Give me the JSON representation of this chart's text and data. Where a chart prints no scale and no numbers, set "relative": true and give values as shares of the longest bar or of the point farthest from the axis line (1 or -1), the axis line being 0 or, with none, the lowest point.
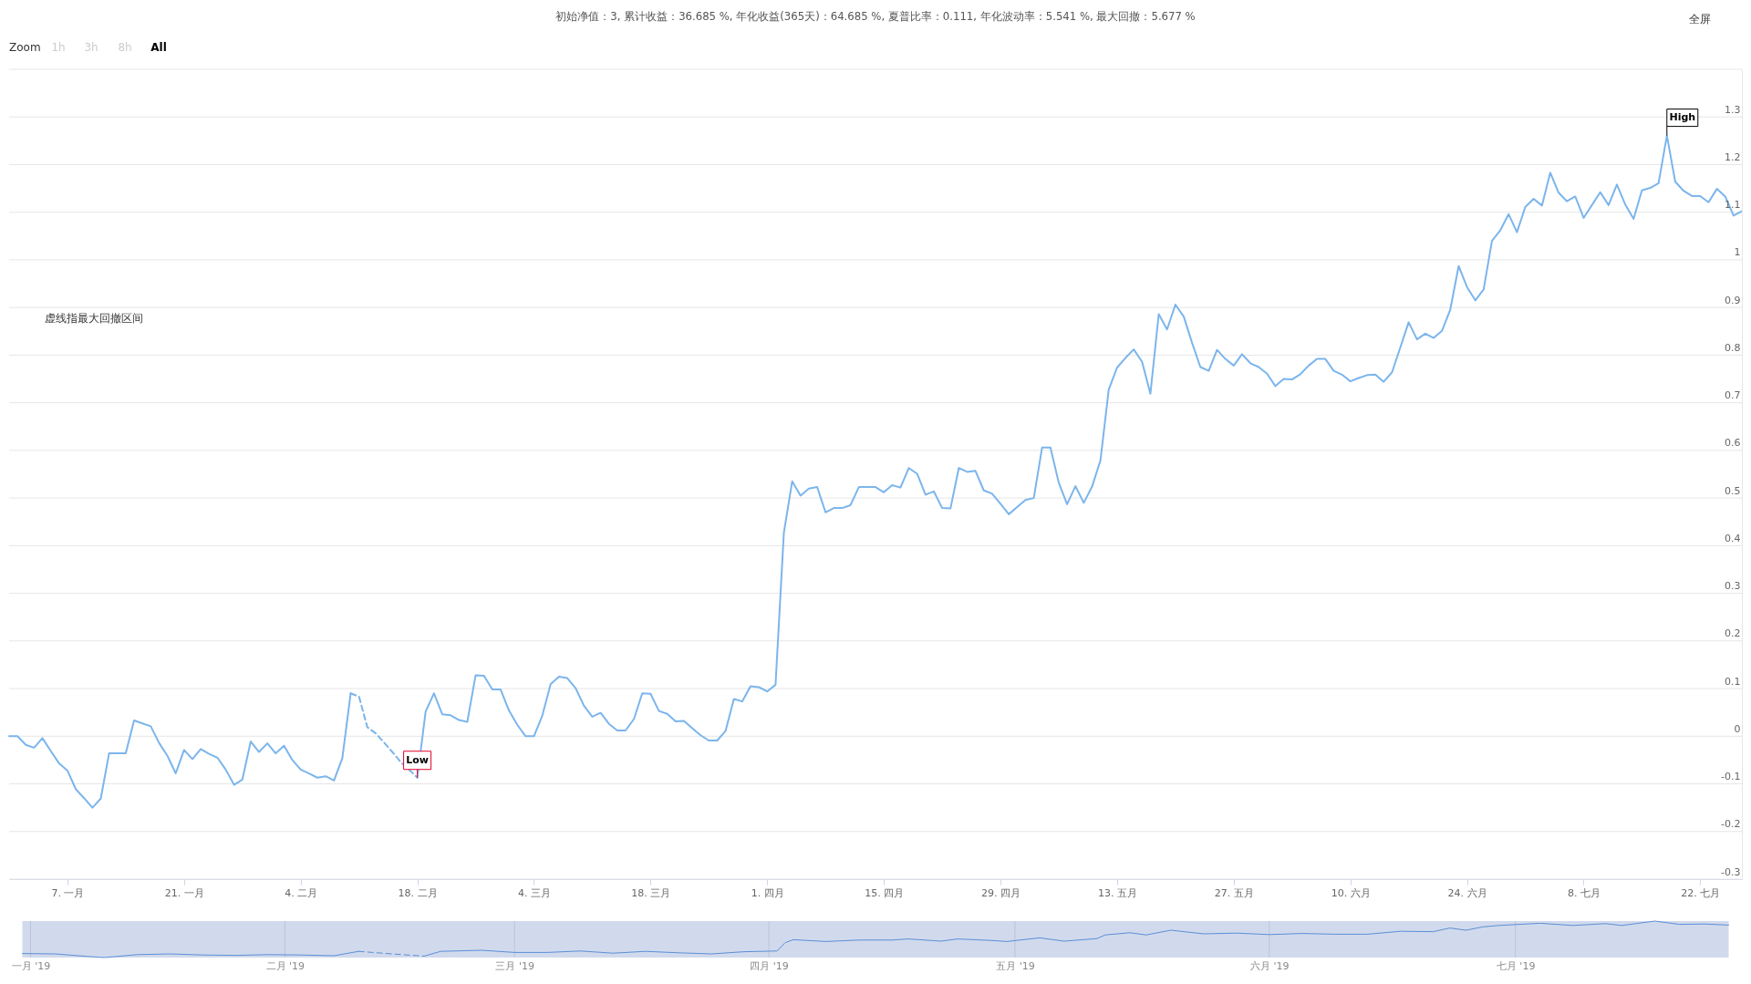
{
  "chart_data": [
    {
      "type": "line",
      "title": "初始净值：3, 累计收益：36.685 %, 年化收益(365天)：64.685 %, 夏普比率：0.111, 年化波动率：5.541 %, 最大回撤：5.677 %",
      "annotations": [
        "虚线指最大回撤区间",
        {
          "text": "High",
          "x": "2019-07-18",
          "y": 1.261
        },
        {
          "text": "Low",
          "x": "2019-02-18",
          "y": -0.087
        },
        "Zoom",
        "1h",
        "3h",
        "8h",
        "All",
        "全屏"
      ],
      "xlim": [
        "2018-12-31",
        "2019-07-27"
      ],
      "xticks": [
        {
          "value": "2019-01-07",
          "label": "7. 一月"
        },
        {
          "value": "2019-01-21",
          "label": "21. 一月"
        },
        {
          "value": "2019-02-04",
          "label": "4. 二月"
        },
        {
          "value": "2019-02-18",
          "label": "18. 二月"
        },
        {
          "value": "2019-03-04",
          "label": "4. 三月"
        },
        {
          "value": "2019-03-18",
          "label": "18. 三月"
        },
        {
          "value": "2019-04-01",
          "label": "1. 四月"
        },
        {
          "value": "2019-04-15",
          "label": "15. 四月"
        },
        {
          "value": "2019-04-29",
          "label": "29. 四月"
        },
        {
          "value": "2019-05-13",
          "label": "13. 五月"
        },
        {
          "value": "2019-05-27",
          "label": "27. 五月"
        },
        {
          "value": "2019-06-10",
          "label": "10. 六月"
        },
        {
          "value": "2019-06-24",
          "label": "24. 六月"
        },
        {
          "value": "2019-07-08",
          "label": "8. 七月"
        },
        {
          "value": "2019-07-22",
          "label": "22. 七月"
        }
      ],
      "ylim": [
        -0.3,
        1.4
      ],
      "yticks": [
        -0.3,
        -0.2,
        -0.1,
        0,
        0.1,
        0.2,
        0.3,
        0.4,
        0.5,
        0.6,
        0.7,
        0.8,
        0.9,
        1,
        1.1,
        1.2,
        1.3,
        {
          "value": 1.4,
          "label": null
        }
      ],
      "grid": "y",
      "line_style": "solid",
      "series": [
        {
          "color": "#7cb5ec",
          "x": [
            "2018-12-31",
            "2019-01-01",
            "2019-01-02",
            "2019-01-03",
            "2019-01-04",
            "2019-01-05",
            "2019-01-06",
            "2019-01-07",
            "2019-01-08",
            "2019-01-09",
            "2019-01-10",
            "2019-01-11",
            "2019-01-12",
            "2019-01-13",
            "2019-01-14",
            "2019-01-15",
            "2019-01-16",
            "2019-01-17",
            "2019-01-18",
            "2019-01-19",
            "2019-01-20",
            "2019-01-21",
            "2019-01-22",
            "2019-01-23",
            "2019-01-24",
            "2019-01-25",
            "2019-01-26",
            "2019-01-27",
            "2019-01-28",
            "2019-01-29",
            "2019-01-30",
            "2019-01-31",
            "2019-02-01",
            "2019-02-02",
            "2019-02-03",
            "2019-02-04",
            "2019-02-05",
            "2019-02-06",
            "2019-02-07",
            "2019-02-08",
            "2019-02-09",
            "2019-02-10",
            "2019-02-11",
            "2019-02-12",
            "2019-02-13",
            "2019-02-14",
            "2019-02-15",
            "2019-02-16",
            "2019-02-17",
            "2019-02-18",
            "2019-02-19",
            "2019-02-20",
            "2019-02-21",
            "2019-02-22",
            "2019-02-23",
            "2019-02-24",
            "2019-02-25",
            "2019-02-26",
            "2019-02-27",
            "2019-02-28",
            "2019-03-01",
            "2019-03-02",
            "2019-03-03",
            "2019-03-04",
            "2019-03-05",
            "2019-03-06",
            "2019-03-07",
            "2019-03-08",
            "2019-03-09",
            "2019-03-10",
            "2019-03-11",
            "2019-03-12",
            "2019-03-13",
            "2019-03-14",
            "2019-03-15",
            "2019-03-16",
            "2019-03-17",
            "2019-03-18",
            "2019-03-19",
            "2019-03-20",
            "2019-03-21",
            "2019-03-22",
            "2019-03-23",
            "2019-03-24",
            "2019-03-25",
            "2019-03-26",
            "2019-03-27",
            "2019-03-28",
            "2019-03-29",
            "2019-03-30",
            "2019-03-31",
            "2019-04-01",
            "2019-04-02",
            "2019-04-03",
            "2019-04-04",
            "2019-04-05",
            "2019-04-06",
            "2019-04-07",
            "2019-04-08",
            "2019-04-09",
            "2019-04-10",
            "2019-04-11",
            "2019-04-12",
            "2019-04-13",
            "2019-04-14",
            "2019-04-15",
            "2019-04-16",
            "2019-04-17",
            "2019-04-18",
            "2019-04-19",
            "2019-04-20",
            "2019-04-21",
            "2019-04-22",
            "2019-04-23",
            "2019-04-24",
            "2019-04-25",
            "2019-04-26",
            "2019-04-27",
            "2019-04-28",
            "2019-04-29",
            "2019-04-30",
            "2019-05-01",
            "2019-05-02",
            "2019-05-03",
            "2019-05-04",
            "2019-05-05",
            "2019-05-06",
            "2019-05-07",
            "2019-05-08",
            "2019-05-09",
            "2019-05-10",
            "2019-05-11",
            "2019-05-12",
            "2019-05-13",
            "2019-05-14",
            "2019-05-15",
            "2019-05-16",
            "2019-05-17",
            "2019-05-18",
            "2019-05-19",
            "2019-05-20",
            "2019-05-21",
            "2019-05-22",
            "2019-05-23",
            "2019-05-24",
            "2019-05-25",
            "2019-05-26",
            "2019-05-27",
            "2019-05-28",
            "2019-05-29",
            "2019-05-30",
            "2019-05-31",
            "2019-06-01",
            "2019-06-02",
            "2019-06-03",
            "2019-06-04",
            "2019-06-05",
            "2019-06-06",
            "2019-06-07",
            "2019-06-08",
            "2019-06-09",
            "2019-06-10",
            "2019-06-11",
            "2019-06-12",
            "2019-06-13",
            "2019-06-14",
            "2019-06-15",
            "2019-06-16",
            "2019-06-17",
            "2019-06-18",
            "2019-06-19",
            "2019-06-20",
            "2019-06-21",
            "2019-06-22",
            "2019-06-23",
            "2019-06-24",
            "2019-06-25",
            "2019-06-26",
            "2019-06-27",
            "2019-06-28",
            "2019-06-29",
            "2019-06-30",
            "2019-07-01",
            "2019-07-02",
            "2019-07-03",
            "2019-07-04",
            "2019-07-05",
            "2019-07-06",
            "2019-07-07",
            "2019-07-08",
            "2019-07-09",
            "2019-07-10",
            "2019-07-11",
            "2019-07-12",
            "2019-07-13",
            "2019-07-14",
            "2019-07-15",
            "2019-07-16",
            "2019-07-17",
            "2019-07-18",
            "2019-07-19",
            "2019-07-20",
            "2019-07-21",
            "2019-07-22",
            "2019-07-23",
            "2019-07-24",
            "2019-07-25",
            "2019-07-26",
            "2019-07-27"
          ],
          "values": [
            0.0,
            0.0,
            -0.018,
            -0.024,
            -0.004,
            -0.031,
            -0.057,
            -0.072,
            -0.111,
            -0.13,
            -0.15,
            -0.131,
            -0.036,
            -0.036,
            -0.036,
            0.033,
            0.027,
            0.021,
            -0.014,
            -0.041,
            -0.078,
            -0.029,
            -0.048,
            -0.027,
            -0.037,
            -0.045,
            -0.07,
            -0.102,
            -0.091,
            -0.011,
            -0.033,
            -0.015,
            -0.036,
            -0.02,
            -0.05,
            -0.07,
            -0.078,
            -0.087,
            -0.084,
            -0.093,
            -0.046,
            0.09,
            null,
            null,
            null,
            null,
            null,
            null,
            null,
            -0.087,
            0.052,
            0.09,
            0.046,
            0.044,
            0.034,
            0.03,
            0.128,
            0.127,
            0.098,
            0.098,
            0.054,
            0.024,
            0.0,
            0.0,
            0.043,
            0.109,
            0.125,
            0.122,
            0.101,
            0.064,
            0.041,
            0.049,
            0.026,
            0.012,
            0.012,
            0.036,
            0.09,
            0.089,
            0.053,
            0.047,
            0.031,
            0.032,
            0.017,
            0.002,
            -0.009,
            -0.009,
            0.011,
            0.078,
            0.073,
            0.105,
            0.103,
            0.094,
            0.108,
            0.427,
            0.535,
            0.505,
            0.52,
            0.523,
            0.47,
            0.479,
            0.479,
            0.485,
            0.523,
            0.523,
            0.523,
            0.512,
            0.527,
            0.522,
            0.563,
            0.551,
            0.507,
            0.514,
            0.479,
            0.478,
            0.563,
            0.555,
            0.557,
            0.516,
            0.509,
            0.488,
            0.466,
            0.481,
            0.496,
            0.5,
            0.606,
            0.606,
            0.532,
            0.487,
            0.525,
            0.49,
            0.524,
            0.579,
            0.728,
            0.774,
            0.794,
            0.812,
            0.786,
            0.719,
            0.886,
            0.854,
            0.906,
            0.881,
            0.826,
            0.775,
            0.767,
            0.811,
            0.792,
            0.778,
            0.802,
            0.783,
            0.775,
            0.761,
            0.735,
            0.75,
            0.749,
            0.76,
            0.778,
            0.792,
            0.792,
            0.767,
            0.759,
            0.745,
            0.752,
            0.758,
            0.759,
            0.744,
            0.764,
            0.816,
            0.869,
            0.833,
            0.845,
            0.836,
            0.851,
            0.896,
            0.987,
            0.943,
            0.915,
            0.938,
            1.04,
            1.062,
            1.096,
            1.058,
            1.111,
            1.128,
            1.114,
            1.183,
            1.141,
            1.123,
            1.133,
            1.088,
            1.115,
            1.142,
            1.115,
            1.158,
            1.116,
            1.086,
            1.146,
            1.151,
            1.161,
            1.261,
            1.164,
            1.145,
            1.134,
            1.134,
            1.121,
            1.149,
            1.133,
            1.093,
            1.102
          ]
        },
        {
          "color": "#7bb4eb",
          "line_style": "dashed",
          "x": [
            "2019-02-10",
            "2019-02-11",
            "2019-02-12",
            "2019-02-13",
            "2019-02-14",
            "2019-02-15",
            "2019-02-16",
            "2019-02-17",
            "2019-02-18"
          ],
          "values": [
            0.09,
            0.083,
            0.019,
            0.006,
            -0.013,
            -0.033,
            -0.054,
            -0.07,
            -0.087
          ]
        }
      ]
    },
    {
      "type": "line",
      "relative": true,
      "tick_labels": "x",
      "grid": "x",
      "xlim": [
        "2018-12-31",
        "2019-07-27"
      ],
      "xticks": [
        {
          "value": "2019-01-01",
          "label": "一月 '19"
        },
        {
          "value": "2019-02-01",
          "label": "二月 '19"
        },
        {
          "value": "2019-03-01",
          "label": "三月 '19"
        },
        {
          "value": "2019-04-01",
          "label": "四月 '19"
        },
        {
          "value": "2019-05-01",
          "label": "五月 '19"
        },
        {
          "value": "2019-06-01",
          "label": "六月 '19"
        },
        {
          "value": "2019-07-01",
          "label": "七月 '19"
        }
      ],
      "bands": [
        {
          "axis": "x",
          "from": "2018-12-31",
          "to": "2019-07-27",
          "color": "#d1daed"
        }
      ],
      "series": [
        {
          "color": "#5b8fd6",
          "x": [
            "2018-12-31",
            "2019-01-04",
            "2019-01-08",
            "2019-01-10",
            "2019-01-14",
            "2019-01-18",
            "2019-01-22",
            "2019-01-26",
            "2019-01-30",
            "2019-02-03",
            "2019-02-07",
            "2019-02-10",
            "2019-02-14",
            "2019-02-18",
            "2019-02-20",
            "2019-02-25",
            "2019-03-01",
            "2019-03-05",
            "2019-03-09",
            "2019-03-13",
            "2019-03-17",
            "2019-03-21",
            "2019-03-25",
            "2019-03-29",
            "2019-04-02",
            "2019-04-03",
            "2019-04-04",
            "2019-04-08",
            "2019-04-12",
            "2019-04-16",
            "2019-04-18",
            "2019-04-22",
            "2019-04-24",
            "2019-04-28",
            "2019-04-30",
            "2019-05-04",
            "2019-05-07",
            "2019-05-11",
            "2019-05-12",
            "2019-05-15",
            "2019-05-17",
            "2019-05-20",
            "2019-05-24",
            "2019-05-28",
            "2019-06-01",
            "2019-06-05",
            "2019-06-09",
            "2019-06-13",
            "2019-06-17",
            "2019-06-21",
            "2019-06-23",
            "2019-06-25",
            "2019-06-27",
            "2019-06-29",
            "2019-07-04",
            "2019-07-08",
            "2019-07-12",
            "2019-07-14",
            "2019-07-18",
            "2019-07-21",
            "2019-07-24",
            "2019-07-27"
          ],
          "values": [
            0.11,
            0.1,
            0.03,
            0.0,
            0.08,
            0.1,
            0.07,
            0.06,
            0.08,
            0.07,
            0.05,
            0.17,
            null,
            0.04,
            0.17,
            0.2,
            0.14,
            0.14,
            0.18,
            0.12,
            0.17,
            0.13,
            0.1,
            0.16,
            0.18,
            0.41,
            0.49,
            0.44,
            0.48,
            0.48,
            0.51,
            0.45,
            0.51,
            0.47,
            0.44,
            0.54,
            0.45,
            0.52,
            0.62,
            0.68,
            0.62,
            0.75,
            0.65,
            0.67,
            0.63,
            0.66,
            0.64,
            0.64,
            0.72,
            0.71,
            0.81,
            0.75,
            0.84,
            0.88,
            0.94,
            0.88,
            0.93,
            0.88,
            1.0,
            0.91,
            0.92,
            0.89
          ]
        },
        {
          "color": "#5a8ed5",
          "line_style": "dashed",
          "x": [
            "2019-02-10",
            "2019-02-14",
            "2019-02-18"
          ],
          "values": [
            0.17,
            0.1,
            0.04
          ]
        }
      ]
    }
  ]
}
